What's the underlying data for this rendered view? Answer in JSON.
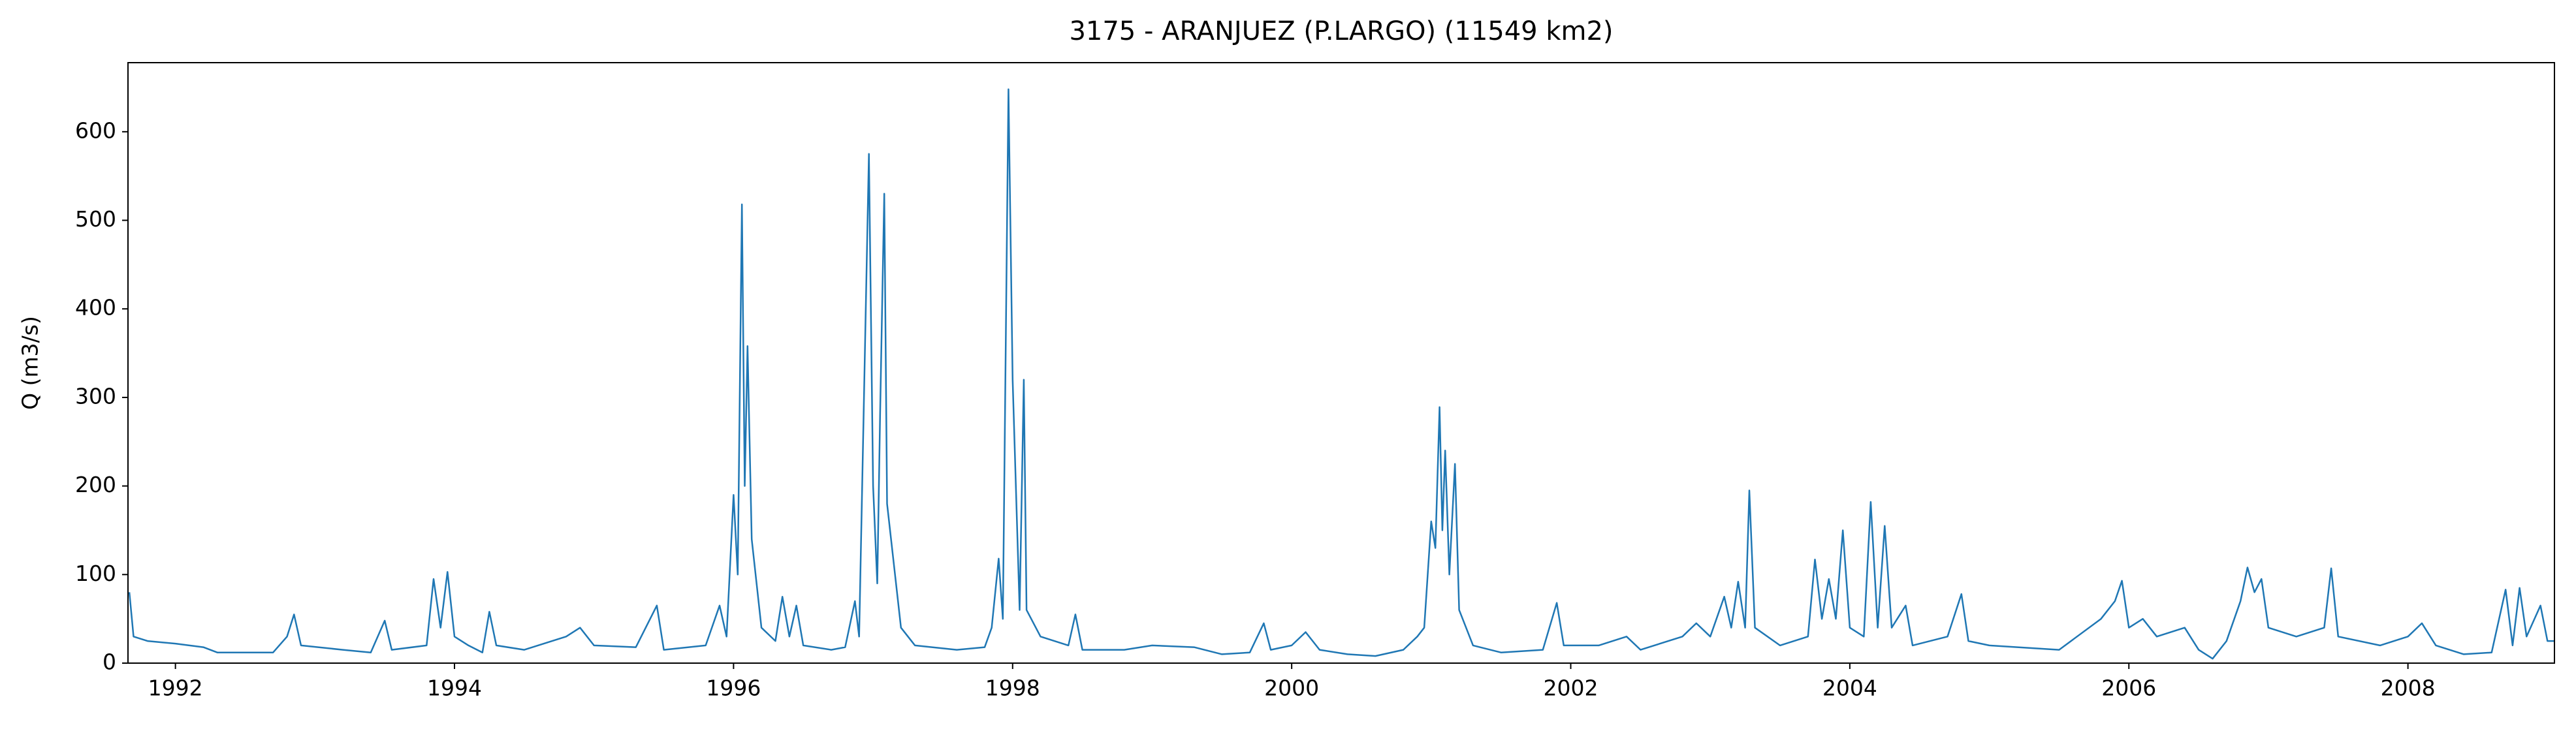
{
  "chart_data": {
    "type": "line",
    "title": "3175 - ARANJUEZ (P.LARGO) (11549 km2)",
    "y_label": "Q (m3/s)",
    "x": [
      1991.67,
      1991.7,
      1991.8,
      1992.0,
      1992.2,
      1992.3,
      1992.7,
      1992.8,
      1992.85,
      1992.9,
      1993.2,
      1993.4,
      1993.5,
      1993.55,
      1993.8,
      1993.85,
      1993.9,
      1993.95,
      1994.0,
      1994.1,
      1994.2,
      1994.25,
      1994.3,
      1994.5,
      1994.8,
      1994.9,
      1995.0,
      1995.3,
      1995.45,
      1995.5,
      1995.8,
      1995.9,
      1995.95,
      1996.0,
      1996.03,
      1996.06,
      1996.08,
      1996.1,
      1996.13,
      1996.2,
      1996.3,
      1996.35,
      1996.4,
      1996.45,
      1996.5,
      1996.7,
      1996.8,
      1996.87,
      1996.9,
      1996.97,
      1997.0,
      1997.03,
      1997.05,
      1997.08,
      1997.1,
      1997.2,
      1997.3,
      1997.6,
      1997.8,
      1997.85,
      1997.9,
      1997.93,
      1997.97,
      1998.0,
      1998.05,
      1998.08,
      1998.1,
      1998.2,
      1998.4,
      1998.45,
      1998.5,
      1998.8,
      1999.0,
      1999.3,
      1999.5,
      1999.7,
      1999.8,
      1999.85,
      2000.0,
      2000.1,
      2000.2,
      2000.4,
      2000.6,
      2000.8,
      2000.9,
      2000.95,
      2001.0,
      2001.03,
      2001.06,
      2001.08,
      2001.1,
      2001.13,
      2001.17,
      2001.2,
      2001.3,
      2001.5,
      2001.8,
      2001.9,
      2001.95,
      2002.2,
      2002.4,
      2002.5,
      2002.8,
      2002.9,
      2003.0,
      2003.1,
      2003.15,
      2003.2,
      2003.25,
      2003.28,
      2003.32,
      2003.5,
      2003.7,
      2003.75,
      2003.8,
      2003.85,
      2003.9,
      2003.95,
      2004.0,
      2004.1,
      2004.15,
      2004.2,
      2004.25,
      2004.3,
      2004.4,
      2004.45,
      2004.7,
      2004.8,
      2004.85,
      2005.0,
      2005.5,
      2005.8,
      2005.9,
      2005.95,
      2006.0,
      2006.1,
      2006.2,
      2006.4,
      2006.5,
      2006.6,
      2006.7,
      2006.8,
      2006.85,
      2006.9,
      2006.95,
      2007.0,
      2007.2,
      2007.4,
      2007.45,
      2007.5,
      2007.8,
      2008.0,
      2008.1,
      2008.2,
      2008.4,
      2008.6,
      2008.7,
      2008.75,
      2008.8,
      2008.85,
      2008.95,
      2009.0,
      2009.05
    ],
    "series": [
      {
        "color": "#1f77b4",
        "values": [
          80,
          30,
          25,
          22,
          18,
          12,
          12,
          30,
          55,
          20,
          15,
          12,
          48,
          15,
          20,
          95,
          40,
          103,
          30,
          20,
          12,
          58,
          20,
          15,
          30,
          40,
          20,
          18,
          65,
          15,
          20,
          65,
          30,
          190,
          100,
          518,
          200,
          358,
          140,
          40,
          25,
          75,
          30,
          65,
          20,
          15,
          18,
          70,
          30,
          575,
          200,
          90,
          280,
          530,
          180,
          40,
          20,
          15,
          18,
          40,
          118,
          50,
          648,
          320,
          60,
          320,
          60,
          30,
          20,
          55,
          15,
          15,
          20,
          18,
          10,
          12,
          45,
          15,
          20,
          35,
          15,
          10,
          8,
          15,
          30,
          40,
          160,
          130,
          289,
          150,
          240,
          100,
          225,
          60,
          20,
          12,
          15,
          68,
          20,
          20,
          30,
          15,
          30,
          45,
          30,
          75,
          40,
          92,
          40,
          195,
          40,
          20,
          30,
          117,
          50,
          95,
          50,
          150,
          40,
          30,
          182,
          40,
          155,
          40,
          65,
          20,
          30,
          78,
          25,
          20,
          15,
          50,
          70,
          93,
          40,
          50,
          30,
          40,
          15,
          5,
          25,
          70,
          108,
          80,
          95,
          40,
          30,
          40,
          107,
          30,
          20,
          30,
          45,
          20,
          10,
          12,
          83,
          20,
          85,
          30,
          65,
          25,
          25
        ]
      }
    ],
    "xlim": [
      1991.66,
      2009.05
    ],
    "xticks": [
      1992,
      1994,
      1996,
      1998,
      2000,
      2002,
      2004,
      2006,
      2008
    ],
    "ylim": [
      0,
      678
    ],
    "yticks": [
      0,
      100,
      200,
      300,
      400,
      500,
      600
    ]
  }
}
